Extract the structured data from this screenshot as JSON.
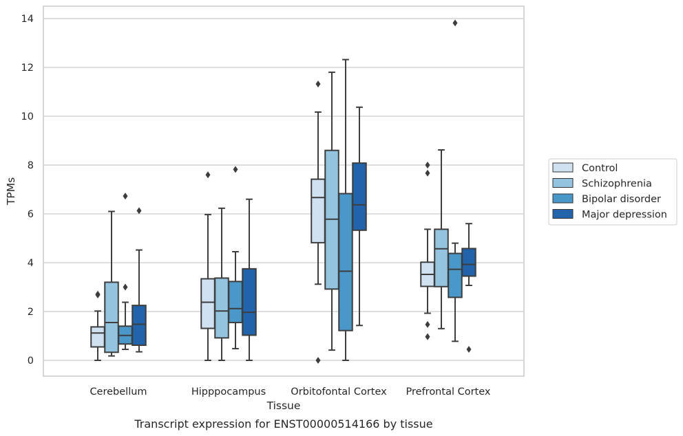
{
  "chart_data": {
    "type": "box",
    "xlabel": "Tissue",
    "ylabel": "TPMs",
    "caption": "Transcript expression for ENST00000514166 by tissue",
    "ylim": [
      -0.65,
      14.5
    ],
    "yticks": [
      0,
      2,
      4,
      6,
      8,
      10,
      12,
      14
    ],
    "grid": "horizontal",
    "legend_position": "right",
    "categories": [
      "Cerebellum",
      "Hipppocampus",
      "Orbitofontal Cortex",
      "Prefrontal Cortex"
    ],
    "series": [
      {
        "name": "Control",
        "color": "#d0e1f2",
        "boxes": [
          {
            "whislo": 0.0,
            "q1": 0.55,
            "med": 1.12,
            "q3": 1.37,
            "whishi": 2.02,
            "fliers": [
              2.68,
              2.71
            ]
          },
          {
            "whislo": 0.0,
            "q1": 1.31,
            "med": 2.38,
            "q3": 3.34,
            "whishi": 5.97,
            "fliers": [
              7.6
            ]
          },
          {
            "whislo": 3.12,
            "q1": 4.82,
            "med": 6.67,
            "q3": 7.42,
            "whishi": 10.17,
            "fliers": [
              11.32,
              0.0
            ]
          },
          {
            "whislo": 1.93,
            "q1": 3.03,
            "med": 3.52,
            "q3": 4.02,
            "whishi": 5.37,
            "fliers": [
              8.0,
              7.67,
              1.47,
              0.97
            ]
          }
        ]
      },
      {
        "name": "Schizophrenia",
        "color": "#94c4df",
        "boxes": [
          {
            "whislo": 0.18,
            "q1": 0.33,
            "med": 1.55,
            "q3": 3.2,
            "whishi": 6.1,
            "fliers": []
          },
          {
            "whislo": 0.0,
            "q1": 0.92,
            "med": 2.02,
            "q3": 3.37,
            "whishi": 6.23,
            "fliers": []
          },
          {
            "whislo": 0.42,
            "q1": 2.92,
            "med": 5.78,
            "q3": 8.6,
            "whishi": 11.8,
            "fliers": []
          },
          {
            "whislo": 1.3,
            "q1": 3.02,
            "med": 4.57,
            "q3": 5.37,
            "whishi": 8.62,
            "fliers": []
          }
        ]
      },
      {
        "name": "Bipolar disorder",
        "color": "#4a98c9",
        "boxes": [
          {
            "whislo": 0.45,
            "q1": 0.67,
            "med": 1.02,
            "q3": 1.4,
            "whishi": 2.38,
            "fliers": [
              6.73,
              3.0
            ]
          },
          {
            "whislo": 0.48,
            "q1": 1.55,
            "med": 2.12,
            "q3": 3.23,
            "whishi": 4.45,
            "fliers": [
              7.82
            ]
          },
          {
            "whislo": 0.0,
            "q1": 1.22,
            "med": 3.65,
            "q3": 6.83,
            "whishi": 12.32,
            "fliers": []
          },
          {
            "whislo": 0.78,
            "q1": 2.58,
            "med": 3.73,
            "q3": 4.38,
            "whishi": 4.8,
            "fliers": [
              13.82
            ]
          }
        ]
      },
      {
        "name": "Major depression",
        "color": "#2164ab",
        "boxes": [
          {
            "whislo": 0.35,
            "q1": 0.62,
            "med": 1.48,
            "q3": 2.25,
            "whishi": 4.52,
            "fliers": [
              6.13
            ]
          },
          {
            "whislo": 0.0,
            "q1": 1.03,
            "med": 1.97,
            "q3": 3.75,
            "whishi": 6.6,
            "fliers": []
          },
          {
            "whislo": 1.43,
            "q1": 5.33,
            "med": 6.37,
            "q3": 8.08,
            "whishi": 10.37,
            "fliers": []
          },
          {
            "whislo": 3.07,
            "q1": 3.45,
            "med": 3.93,
            "q3": 4.58,
            "whishi": 5.6,
            "fliers": [
              0.45
            ]
          }
        ]
      }
    ]
  }
}
